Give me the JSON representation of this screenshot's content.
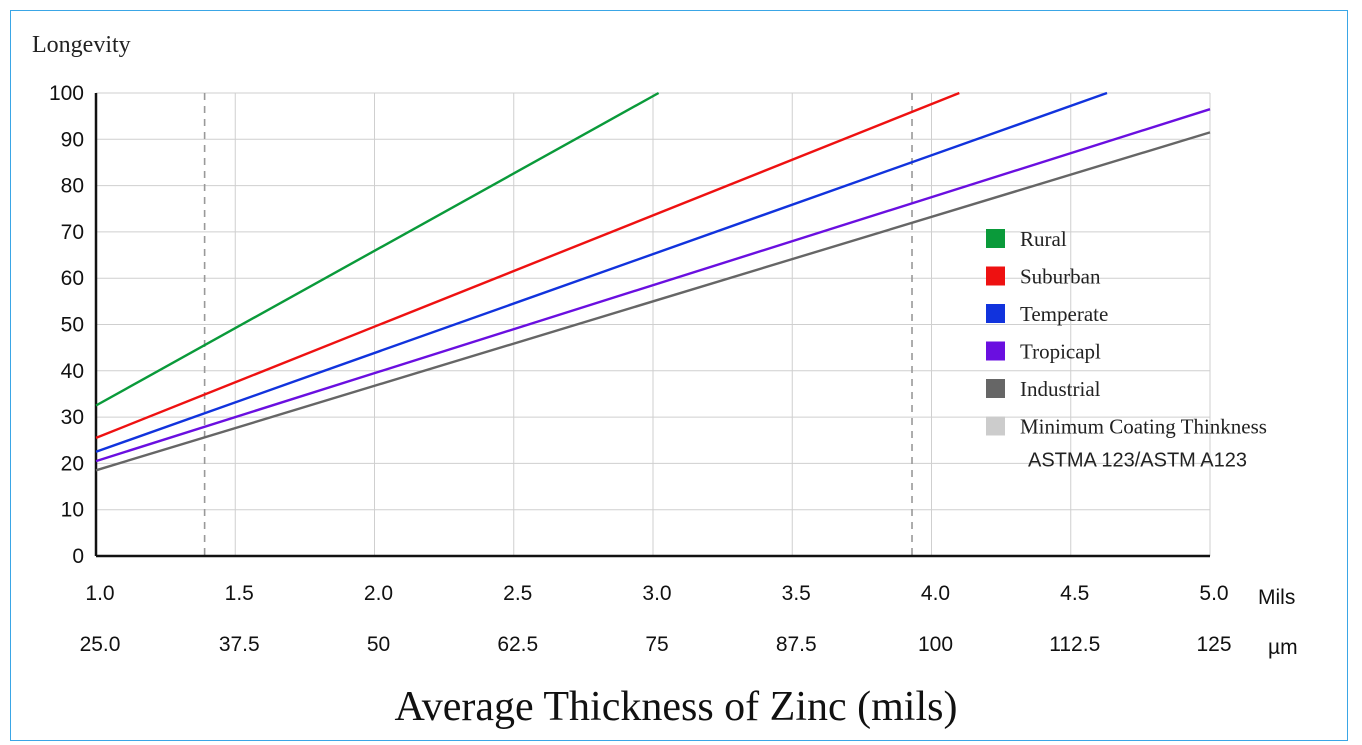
{
  "chart_data": {
    "type": "line",
    "ylabel": "Longevity",
    "xlabel": "Average Thickness of Zinc (mils)",
    "ylim": [
      0,
      100
    ],
    "xlim": [
      1.0,
      5.0
    ],
    "yticks": [
      0,
      10,
      20,
      30,
      40,
      50,
      60,
      70,
      80,
      90,
      100
    ],
    "xticks_mils": [
      "1.0",
      "1.5",
      "2.0",
      "2.5",
      "3.0",
      "3.5",
      "4.0",
      "4.5",
      "5.0"
    ],
    "xticks_um": [
      "25.0",
      "37.5",
      "50",
      "62.5",
      "75",
      "87.5",
      "100",
      "112.5",
      "125"
    ],
    "x_unit_primary": "Mils",
    "x_unit_secondary": "µm",
    "grid": true,
    "legend_position": "right",
    "reference_lines": [
      {
        "x": 1.39,
        "style": "dashed"
      },
      {
        "x": 3.93,
        "style": "dashed"
      }
    ],
    "series": [
      {
        "name": "Rural",
        "color": "#0a9a3a",
        "x": [
          1.0,
          3.02
        ],
        "y": [
          32.5,
          100
        ]
      },
      {
        "name": "Suburban",
        "color": "#ee1111",
        "x": [
          1.0,
          4.1
        ],
        "y": [
          25.5,
          100
        ]
      },
      {
        "name": "Temperate",
        "color": "#1133dd",
        "x": [
          1.0,
          4.63
        ],
        "y": [
          22.5,
          100
        ]
      },
      {
        "name": "Tropicapl",
        "color": "#6a0fe0",
        "x": [
          1.0,
          5.0
        ],
        "y": [
          20.5,
          96.5
        ]
      },
      {
        "name": "Industrial",
        "color": "#666666",
        "x": [
          1.0,
          5.0
        ],
        "y": [
          18.5,
          91.5
        ]
      }
    ],
    "legend_extra": {
      "name": "Minimum Coating Thinkness",
      "sub": "ASTMA 123/ASTM A123",
      "color": "#cccccc"
    }
  }
}
